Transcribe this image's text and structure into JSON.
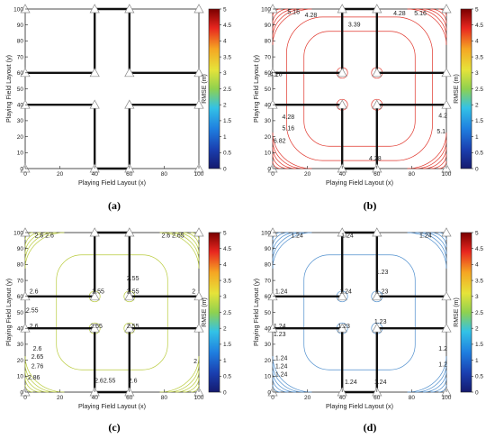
{
  "chart_data": [
    {
      "panel": "a",
      "caption": "(a)",
      "type": "contour",
      "xlabel": "Playing Field Layout (x)",
      "ylabel": "Playing Field Layout (y)",
      "xlim": [
        0,
        100
      ],
      "ylim": [
        0,
        100
      ],
      "xticks": [
        0,
        20,
        40,
        60,
        80,
        100
      ],
      "yticks": [
        0,
        10,
        20,
        30,
        40,
        50,
        60,
        70,
        80,
        90,
        100
      ],
      "colorbar": {
        "label": "RMSE (m)",
        "min": 0,
        "max": 5,
        "ticks": [
          0,
          0.5,
          1,
          1.5,
          2,
          2.5,
          3,
          3.5,
          4,
          4.5,
          5
        ]
      },
      "contour_labels": [],
      "line_color": "none"
    },
    {
      "panel": "b",
      "caption": "(b)",
      "type": "contour",
      "xlabel": "Playing Field Layout (x)",
      "ylabel": "Playing Field Layout (y)",
      "xlim": [
        0,
        100
      ],
      "ylim": [
        0,
        100
      ],
      "xticks": [
        0,
        20,
        40,
        60,
        80,
        100
      ],
      "yticks": [
        0,
        10,
        20,
        30,
        40,
        50,
        60,
        70,
        80,
        90,
        100
      ],
      "colorbar": {
        "label": "RMSE (m)",
        "min": 0,
        "max": 5,
        "ticks": [
          0,
          0.5,
          1,
          1.5,
          2,
          2.5,
          3,
          3.5,
          4,
          4.5,
          5
        ]
      },
      "contour_labels": [
        {
          "text": "5.16",
          "x": 12,
          "y": 97
        },
        {
          "text": "4.28",
          "x": 22,
          "y": 95
        },
        {
          "text": "3.39",
          "x": 47,
          "y": 89
        },
        {
          "text": "4.28",
          "x": 73,
          "y": 96
        },
        {
          "text": "5.16",
          "x": 85,
          "y": 96
        },
        {
          "text": "4.28",
          "x": 2,
          "y": 58
        },
        {
          "text": "4.28",
          "x": 9,
          "y": 31
        },
        {
          "text": "5.16",
          "x": 9,
          "y": 24
        },
        {
          "text": "6.82",
          "x": 4,
          "y": 16
        },
        {
          "text": "4.2",
          "x": 98,
          "y": 32
        },
        {
          "text": "5.1",
          "x": 97,
          "y": 22
        },
        {
          "text": "4.28",
          "x": 59,
          "y": 5
        }
      ],
      "line_color": "#e0362c"
    },
    {
      "panel": "c",
      "caption": "(c)",
      "type": "contour",
      "xlabel": "Playing Field Layout (x)",
      "ylabel": "Playing Field Layout (y)",
      "xlim": [
        0,
        100
      ],
      "ylim": [
        0,
        100
      ],
      "xticks": [
        0,
        20,
        40,
        60,
        80,
        100
      ],
      "yticks": [
        0,
        10,
        20,
        30,
        40,
        50,
        60,
        70,
        80,
        90,
        100
      ],
      "colorbar": {
        "label": "RMSE (m)",
        "min": 0,
        "max": 5,
        "ticks": [
          0,
          0.5,
          1,
          1.5,
          2,
          2.5,
          3,
          3.5,
          4,
          4.5,
          5
        ]
      },
      "contour_labels": [
        {
          "text": "2.6",
          "x": 8,
          "y": 97
        },
        {
          "text": "2.6",
          "x": 14,
          "y": 97
        },
        {
          "text": "2.6",
          "x": 81,
          "y": 97
        },
        {
          "text": "2.65",
          "x": 88,
          "y": 97
        },
        {
          "text": "2.55",
          "x": 62,
          "y": 70
        },
        {
          "text": "2.6",
          "x": 5,
          "y": 62
        },
        {
          "text": "2.55",
          "x": 42,
          "y": 62
        },
        {
          "text": "2.55",
          "x": 62,
          "y": 62
        },
        {
          "text": "2",
          "x": 97,
          "y": 62
        },
        {
          "text": "2.55",
          "x": 4,
          "y": 50
        },
        {
          "text": "2.6",
          "x": 5,
          "y": 40
        },
        {
          "text": "2.55",
          "x": 41,
          "y": 40
        },
        {
          "text": "2.55",
          "x": 62,
          "y": 40
        },
        {
          "text": "2.6",
          "x": 7,
          "y": 26
        },
        {
          "text": "2.65",
          "x": 7,
          "y": 21
        },
        {
          "text": "2.76",
          "x": 7,
          "y": 15
        },
        {
          "text": "2.86",
          "x": 5,
          "y": 8
        },
        {
          "text": "2.62.55",
          "x": 46,
          "y": 6
        },
        {
          "text": "2.6",
          "x": 62,
          "y": 6
        },
        {
          "text": "2",
          "x": 98,
          "y": 18
        }
      ],
      "line_color": "#b9cb3c"
    },
    {
      "panel": "d",
      "caption": "(d)",
      "type": "contour",
      "xlabel": "Playing Field Layout (x)",
      "ylabel": "Playing Field Layout (y)",
      "xlim": [
        0,
        100
      ],
      "ylim": [
        0,
        100
      ],
      "xticks": [
        0,
        20,
        40,
        60,
        80,
        100
      ],
      "yticks": [
        0,
        10,
        20,
        30,
        40,
        50,
        60,
        70,
        80,
        90,
        100
      ],
      "colorbar": {
        "label": "RMSE (m)",
        "min": 0,
        "max": 5,
        "ticks": [
          0,
          0.5,
          1,
          1.5,
          2,
          2.5,
          3,
          3.5,
          4,
          4.5,
          5
        ]
      },
      "contour_labels": [
        {
          "text": "1.24",
          "x": 14,
          "y": 97
        },
        {
          "text": "1.24",
          "x": 43,
          "y": 97
        },
        {
          "text": "1.24",
          "x": 88,
          "y": 97
        },
        {
          "text": "1.23",
          "x": 63,
          "y": 74
        },
        {
          "text": "1.24",
          "x": 5,
          "y": 62
        },
        {
          "text": "1.24",
          "x": 42,
          "y": 62
        },
        {
          "text": "1.23",
          "x": 63,
          "y": 62
        },
        {
          "text": "1.24",
          "x": 4,
          "y": 40
        },
        {
          "text": "1.23",
          "x": 4,
          "y": 35
        },
        {
          "text": "1.23",
          "x": 41,
          "y": 40
        },
        {
          "text": "1.23",
          "x": 62,
          "y": 43
        },
        {
          "text": "1.24",
          "x": 5,
          "y": 20
        },
        {
          "text": "1.24",
          "x": 5,
          "y": 15
        },
        {
          "text": "1.24",
          "x": 5,
          "y": 10
        },
        {
          "text": "1.24",
          "x": 45,
          "y": 5
        },
        {
          "text": "1.24",
          "x": 62,
          "y": 5
        },
        {
          "text": "1.2",
          "x": 98,
          "y": 26
        },
        {
          "text": "1.2",
          "x": 98,
          "y": 16
        }
      ],
      "line_color": "#4f8fce"
    }
  ],
  "colors": {
    "walls": "#111111",
    "anchor_outline": "#888888",
    "colormap": [
      "#1a237e",
      "#1565c0",
      "#29b6f6",
      "#8bc34a",
      "#fdd835",
      "#fb8c00",
      "#e53935",
      "#8b0000"
    ]
  }
}
